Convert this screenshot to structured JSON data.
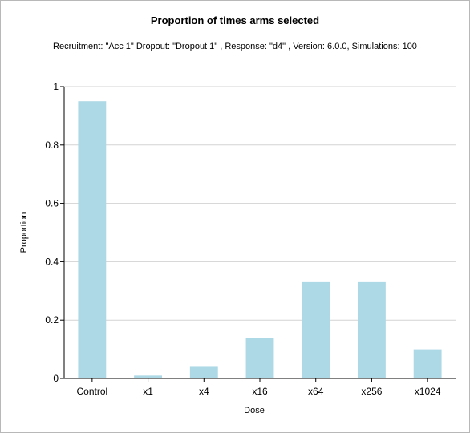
{
  "chart_data": {
    "type": "bar",
    "title": "Proportion of times arms selected",
    "subtitle": "Recruitment: \"Acc 1\" Dropout: \"Dropout 1\" , Response: \"d4\" , Version: 6.0.0, Simulations: 100",
    "xlabel": "Dose",
    "ylabel": "Proportion",
    "categories": [
      "Control",
      "x1",
      "x4",
      "x16",
      "x64",
      "x256",
      "x1024"
    ],
    "values": [
      0.95,
      0.01,
      0.04,
      0.14,
      0.33,
      0.33,
      0.1
    ],
    "ylim": [
      0,
      1
    ],
    "yticks": [
      "0",
      "0.2",
      "0.4",
      "0.6",
      "0.8",
      "1"
    ],
    "grid": true,
    "legend": "none",
    "colors": {
      "bar": "#add8e6",
      "grid": "#d3d3d3",
      "axis": "#000000"
    }
  }
}
